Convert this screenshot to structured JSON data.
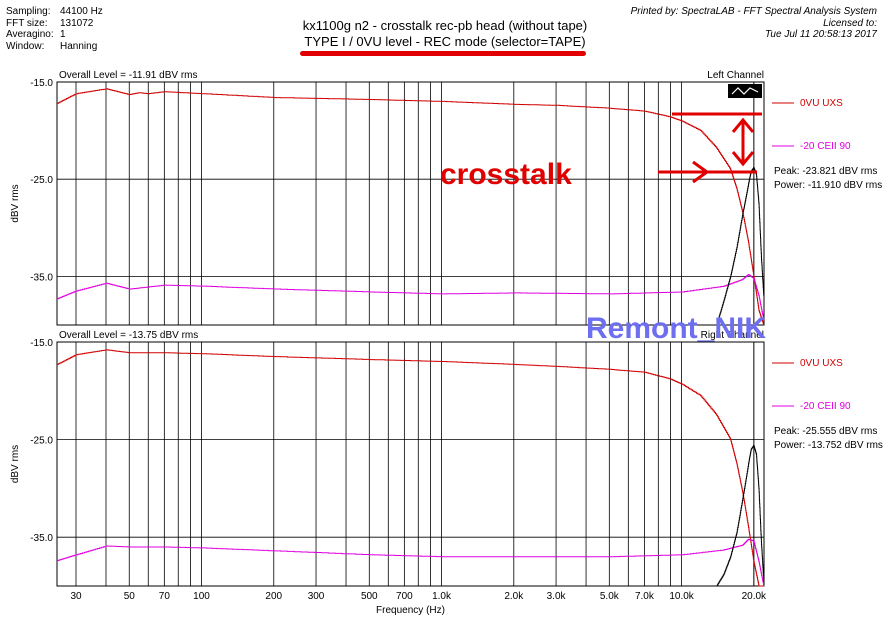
{
  "header": {
    "fields": [
      {
        "key": "Sampling:",
        "value": "44100 Hz"
      },
      {
        "key": "FFT size:",
        "value": "131072"
      },
      {
        "key": "Averagino:",
        "value": "1"
      },
      {
        "key": "Window:",
        "value": "Hanning"
      }
    ],
    "title_line1": "kx1100g n2 - crosstalk rec-pb head (without tape)",
    "title_line2": "TYPE I / 0VU level - REC mode (selector=TAPE)",
    "printed_by": "Printed by: SpectraLAB - FFT Spectral Analysis System",
    "licensed_to": "Licensed to:",
    "timestamp": "Tue Jul 11 20:58:13 2017"
  },
  "annotations": {
    "crosstalk_label": "crosstalk",
    "watermark": "Remont_NIK",
    "annotation_color": "#e00000",
    "watermark_color": "#6e6ef0"
  },
  "xlabel": "Frequency (Hz)",
  "ylabel": "dBV rms",
  "x_ticks": [
    {
      "v": 30,
      "label": "30"
    },
    {
      "v": 50,
      "label": "50"
    },
    {
      "v": 70,
      "label": "70"
    },
    {
      "v": 100,
      "label": "100"
    },
    {
      "v": 200,
      "label": "200"
    },
    {
      "v": 300,
      "label": "300"
    },
    {
      "v": 500,
      "label": "500"
    },
    {
      "v": 700,
      "label": "700"
    },
    {
      "v": 1000,
      "label": "1.0k"
    },
    {
      "v": 2000,
      "label": "2.0k"
    },
    {
      "v": 3000,
      "label": "3.0k"
    },
    {
      "v": 5000,
      "label": "5.0k"
    },
    {
      "v": 7000,
      "label": "7.0k"
    },
    {
      "v": 10000,
      "label": "10.0k"
    },
    {
      "v": 20000,
      "label": "20.0k"
    }
  ],
  "y_ticks": [
    {
      "v": -15,
      "label": "-15.0"
    },
    {
      "v": -25,
      "label": "-25.0"
    },
    {
      "v": -35,
      "label": "-35.0"
    }
  ],
  "colors": {
    "red": "#d00000",
    "magenta": "#e000e0",
    "black": "#000000",
    "grid": "#000000"
  },
  "chart_data": [
    {
      "type": "line",
      "x_scale": "log",
      "xlim": [
        25,
        22050
      ],
      "ylim": [
        -40,
        -15
      ],
      "overall_level": "Overall Level = -11.91 dBV rms",
      "channel": "Left Channel",
      "legend": [
        {
          "label": "0VU  UXS",
          "color": "#d00000"
        },
        {
          "label": "-20 CEII 90",
          "color": "#e000e0"
        }
      ],
      "peak": "Peak: -23.821 dBV rms",
      "power": "Power: -11.910 dBV rms",
      "series": [
        {
          "name": "0VU  UXS",
          "color": "#d00000",
          "x": [
            25,
            30,
            40,
            50,
            55,
            60,
            70,
            100,
            200,
            500,
            1000,
            2000,
            3000,
            5000,
            7000,
            9000,
            10000,
            12000,
            14000,
            16000,
            17000,
            18000,
            19000,
            20000,
            21000,
            22000
          ],
          "y": [
            -17.2,
            -16.2,
            -15.7,
            -16.3,
            -16.1,
            -16.2,
            -16.0,
            -16.2,
            -16.6,
            -16.8,
            -17.0,
            -17.3,
            -17.4,
            -17.7,
            -18.0,
            -18.6,
            -19.0,
            -20.0,
            -21.8,
            -24.0,
            -26.0,
            -28.5,
            -31.5,
            -35.0,
            -38.5,
            -40.0
          ]
        },
        {
          "name": "-20 CEII 90",
          "color": "#e000e0",
          "x": [
            25,
            30,
            40,
            50,
            70,
            100,
            200,
            500,
            1000,
            2000,
            5000,
            10000,
            15000,
            18000,
            19000,
            20000,
            21000,
            22000
          ],
          "y": [
            -37.3,
            -36.5,
            -35.7,
            -36.3,
            -35.9,
            -36.0,
            -36.3,
            -36.6,
            -36.8,
            -36.7,
            -36.8,
            -36.6,
            -36.0,
            -35.3,
            -34.8,
            -35.2,
            -37.0,
            -39.5
          ]
        },
        {
          "name": "crosstalk",
          "color": "#000000",
          "x": [
            14000,
            15000,
            16000,
            17000,
            18000,
            19000,
            19500,
            20000,
            20500,
            21000,
            21500,
            22000
          ],
          "y": [
            -40,
            -37.5,
            -35.0,
            -32.0,
            -28.5,
            -25.5,
            -24.2,
            -23.8,
            -24.5,
            -27.5,
            -33.0,
            -37.0
          ]
        }
      ]
    },
    {
      "type": "line",
      "x_scale": "log",
      "xlim": [
        25,
        22050
      ],
      "ylim": [
        -40,
        -15
      ],
      "overall_level": "Overall Level = -13.75 dBV rms",
      "channel": "Right Channel",
      "legend": [
        {
          "label": "0VU  UXS",
          "color": "#d00000"
        },
        {
          "label": "-20 CEII 90",
          "color": "#e000e0"
        }
      ],
      "peak": "Peak: -25.555 dBV rms",
      "power": "Power: -13.752 dBV rms",
      "series": [
        {
          "name": "0VU  UXS",
          "color": "#d00000",
          "x": [
            25,
            30,
            40,
            50,
            70,
            100,
            200,
            500,
            1000,
            2000,
            3000,
            5000,
            7000,
            9000,
            10000,
            12000,
            14000,
            16000,
            17000,
            18000,
            19000,
            20000,
            21000,
            22000
          ],
          "y": [
            -17.3,
            -16.3,
            -15.8,
            -16.1,
            -16.1,
            -16.2,
            -16.5,
            -16.8,
            -17.0,
            -17.3,
            -17.5,
            -17.8,
            -18.1,
            -18.8,
            -19.3,
            -20.5,
            -22.5,
            -25.0,
            -27.5,
            -30.5,
            -34.0,
            -37.5,
            -40.0,
            -40.0
          ]
        },
        {
          "name": "-20 CEII 90",
          "color": "#e000e0",
          "x": [
            25,
            30,
            40,
            50,
            70,
            100,
            200,
            500,
            1000,
            2000,
            5000,
            10000,
            15000,
            18000,
            19000,
            20000,
            21000,
            22000
          ],
          "y": [
            -37.4,
            -36.8,
            -35.9,
            -36.0,
            -36.0,
            -36.1,
            -36.4,
            -36.8,
            -37.0,
            -37.0,
            -37.0,
            -36.8,
            -36.3,
            -35.8,
            -35.2,
            -35.4,
            -37.5,
            -40.0
          ]
        },
        {
          "name": "crosstalk",
          "color": "#000000",
          "x": [
            14000,
            15000,
            16000,
            17000,
            18000,
            19000,
            19500,
            20000,
            20500,
            21000,
            21500,
            22000
          ],
          "y": [
            -40,
            -38.8,
            -37.0,
            -34.5,
            -31.0,
            -27.5,
            -26.0,
            -25.6,
            -26.5,
            -30.0,
            -35.5,
            -39.5
          ]
        }
      ]
    }
  ]
}
